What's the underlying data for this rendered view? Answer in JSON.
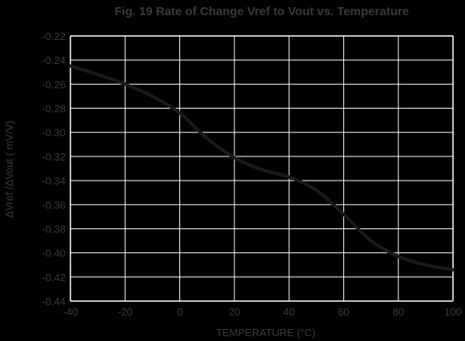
{
  "chart_data": {
    "type": "line",
    "title": "Fig. 19 Rate of Change Vref to Vout vs. Temperature",
    "xlabel": "TEMPERATURE (°C)",
    "ylabel": "ΔVref /ΔVout ( mV/V)",
    "xlim": [
      -40,
      100
    ],
    "ylim": [
      -0.44,
      -0.22
    ],
    "x_ticks": [
      "-40",
      "-20",
      "0",
      "20",
      "40",
      "60",
      "80",
      "100"
    ],
    "y_ticks": [
      "-0.22",
      "-0.24",
      "-0.26",
      "-0.28",
      "-0.30",
      "-0.32",
      "-0.34",
      "-0.36",
      "-0.38",
      "-0.40",
      "-0.42",
      "-0.44"
    ],
    "grid": true,
    "series": [
      {
        "x": [
          -40,
          -30,
          -20,
          -10,
          0,
          10,
          20,
          30,
          40,
          50,
          60,
          70,
          80,
          90,
          100
        ],
        "y": [
          -0.245,
          -0.252,
          -0.26,
          -0.27,
          -0.284,
          -0.305,
          -0.321,
          -0.331,
          -0.337,
          -0.348,
          -0.368,
          -0.39,
          -0.403,
          -0.41,
          -0.414
        ]
      }
    ],
    "colors": {
      "background": "#000000",
      "grid": "#ffffff",
      "line": "#1a1a1a",
      "text": "#3a3a3a"
    }
  }
}
